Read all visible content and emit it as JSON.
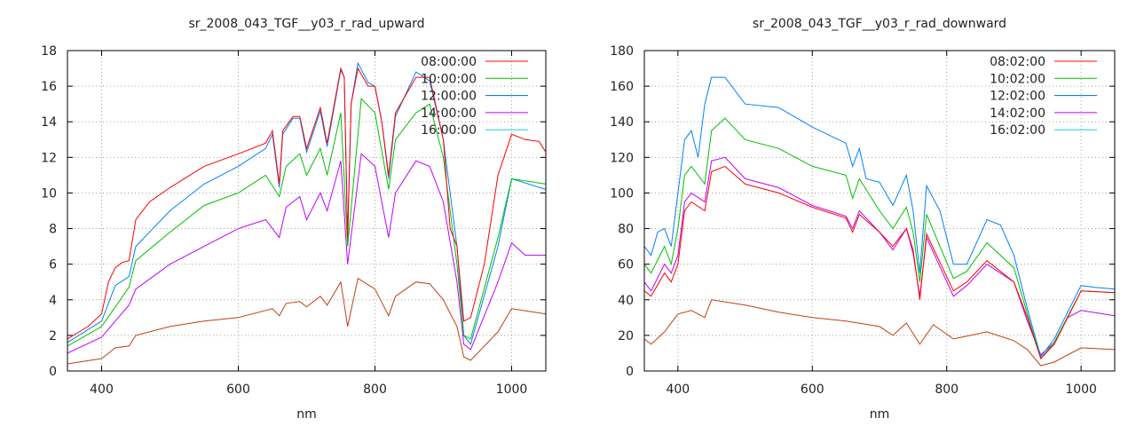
{
  "chart_data": [
    {
      "type": "line",
      "title": "sr_2008_043_TGF__y03_r_rad_upward",
      "xlabel": "nm",
      "ylabel": "",
      "xlim": [
        350,
        1050
      ],
      "ylim": [
        0,
        18
      ],
      "xticks": [
        400,
        600,
        800,
        1000
      ],
      "yticks": [
        0,
        2,
        4,
        6,
        8,
        10,
        12,
        14,
        16,
        18
      ],
      "grid": true,
      "legend_position": "top-right",
      "series": [
        {
          "name": "08:00:00",
          "color": "#ff0000",
          "legend_color": "#ff0000",
          "x": [
            350,
            380,
            400,
            410,
            420,
            430,
            440,
            450,
            470,
            500,
            550,
            600,
            640,
            650,
            660,
            665,
            680,
            690,
            700,
            720,
            730,
            750,
            755,
            760,
            765,
            775,
            790,
            800,
            810,
            820,
            830,
            860,
            880,
            900,
            910,
            920,
            930,
            940,
            960,
            980,
            1000,
            1020,
            1040,
            1050
          ],
          "y": [
            1.8,
            2.5,
            3.2,
            5,
            5.8,
            6.1,
            6.2,
            8.5,
            9.5,
            10.3,
            11.5,
            12.2,
            12.8,
            13.5,
            10.5,
            13.5,
            14.3,
            14.3,
            12.5,
            14.8,
            12.8,
            17,
            16.5,
            7.5,
            15,
            17,
            16,
            16,
            14,
            11,
            14.5,
            16.5,
            16.5,
            13,
            8,
            7,
            2.8,
            3,
            6,
            11,
            13.3,
            13,
            12.9,
            12.3
          ]
        },
        {
          "name": "10:00:00",
          "color": "#00c000",
          "legend_color": "#00c000",
          "x": [
            350,
            400,
            440,
            450,
            500,
            550,
            600,
            640,
            660,
            670,
            690,
            700,
            720,
            730,
            750,
            760,
            780,
            800,
            820,
            830,
            860,
            880,
            900,
            920,
            930,
            940,
            980,
            1000,
            1050
          ],
          "y": [
            1.4,
            2.5,
            4.7,
            6.2,
            7.8,
            9.3,
            10,
            11,
            9.8,
            11.5,
            12.2,
            11,
            12.5,
            11,
            14.5,
            7,
            15.3,
            14.5,
            10.2,
            13,
            14.5,
            15,
            12,
            6,
            2,
            1.8,
            7.5,
            10.8,
            10.5
          ]
        },
        {
          "name": "12:00:00",
          "color": "#0080ff",
          "legend_color": "#0066dd",
          "x": [
            350,
            400,
            420,
            440,
            450,
            500,
            550,
            600,
            640,
            650,
            660,
            665,
            680,
            690,
            700,
            720,
            730,
            750,
            755,
            760,
            765,
            775,
            790,
            800,
            810,
            820,
            830,
            860,
            880,
            900,
            920,
            930,
            940,
            980,
            1000,
            1050
          ],
          "y": [
            1.6,
            2.8,
            4.8,
            5.3,
            7,
            9,
            10.5,
            11.5,
            12.5,
            13.3,
            10.3,
            13.3,
            14.2,
            14.2,
            12.3,
            14.6,
            12.6,
            16.9,
            16.5,
            7.3,
            15,
            17.3,
            16.2,
            16,
            14,
            10.8,
            14.3,
            16.8,
            16.3,
            13,
            7,
            2,
            1.5,
            7,
            10.8,
            10.2
          ]
        },
        {
          "name": "14:00:00",
          "color": "#c000ff",
          "legend_color": "#c000ff",
          "x": [
            350,
            400,
            440,
            450,
            500,
            550,
            600,
            640,
            660,
            670,
            690,
            700,
            720,
            730,
            750,
            760,
            780,
            800,
            820,
            830,
            860,
            880,
            900,
            920,
            930,
            940,
            980,
            1000,
            1020,
            1050
          ],
          "y": [
            1,
            1.9,
            3.7,
            4.6,
            6,
            7,
            8,
            8.5,
            7.5,
            9.2,
            9.8,
            8.5,
            10,
            9,
            11.8,
            6,
            12.2,
            11.5,
            7.5,
            10,
            11.8,
            11.5,
            9.5,
            5,
            1.5,
            1.2,
            5,
            7.2,
            6.5,
            6.5
          ]
        },
        {
          "name": "16:00:00",
          "color": "#c04010",
          "legend_color": "#20d0d0",
          "x": [
            350,
            400,
            420,
            440,
            450,
            500,
            550,
            600,
            650,
            660,
            670,
            690,
            700,
            720,
            730,
            750,
            760,
            775,
            800,
            820,
            830,
            860,
            880,
            900,
            920,
            930,
            940,
            980,
            1000,
            1050
          ],
          "y": [
            0.4,
            0.7,
            1.3,
            1.4,
            2,
            2.5,
            2.8,
            3,
            3.5,
            3.1,
            3.8,
            3.9,
            3.6,
            4.2,
            3.7,
            5,
            2.5,
            5.2,
            4.6,
            3.1,
            4.2,
            5,
            4.9,
            4,
            2.5,
            0.8,
            0.6,
            2.2,
            3.5,
            3.2
          ]
        }
      ]
    },
    {
      "type": "line",
      "title": "sr_2008_043_TGF__y03_r_rad_downward",
      "xlabel": "nm",
      "ylabel": "",
      "xlim": [
        350,
        1050
      ],
      "ylim": [
        0,
        180
      ],
      "xticks": [
        400,
        600,
        800,
        1000
      ],
      "yticks": [
        0,
        20,
        40,
        60,
        80,
        100,
        120,
        140,
        160,
        180
      ],
      "grid": true,
      "legend_position": "top-right",
      "series": [
        {
          "name": "08:02:00",
          "color": "#ff0000",
          "legend_color": "#ff0000",
          "x": [
            350,
            360,
            380,
            390,
            400,
            410,
            420,
            440,
            450,
            470,
            500,
            550,
            600,
            650,
            660,
            670,
            700,
            720,
            740,
            750,
            760,
            770,
            810,
            830,
            860,
            900,
            920,
            940,
            960,
            1000,
            1050
          ],
          "y": [
            45,
            42,
            55,
            50,
            60,
            90,
            95,
            90,
            112,
            115,
            105,
            100,
            92,
            86,
            78,
            88,
            78,
            70,
            80,
            68,
            40,
            77,
            45,
            50,
            62,
            50,
            30,
            7,
            15,
            45,
            44
          ]
        },
        {
          "name": "10:02:00",
          "color": "#00c000",
          "legend_color": "#00c000",
          "x": [
            350,
            360,
            380,
            390,
            400,
            410,
            420,
            440,
            450,
            470,
            500,
            550,
            600,
            650,
            660,
            670,
            700,
            720,
            740,
            750,
            760,
            770,
            810,
            830,
            860,
            900,
            920,
            940,
            960,
            1000,
            1050
          ],
          "y": [
            60,
            55,
            70,
            60,
            80,
            110,
            115,
            105,
            135,
            142,
            130,
            125,
            115,
            110,
            97,
            108,
            90,
            80,
            92,
            78,
            50,
            88,
            52,
            56,
            72,
            58,
            32,
            7,
            16,
            45,
            44
          ]
        },
        {
          "name": "12:02:00",
          "color": "#0080ff",
          "legend_color": "#0066dd",
          "x": [
            350,
            360,
            370,
            380,
            390,
            400,
            410,
            420,
            430,
            440,
            450,
            470,
            500,
            550,
            600,
            650,
            660,
            670,
            680,
            700,
            720,
            740,
            750,
            760,
            770,
            790,
            810,
            830,
            860,
            880,
            900,
            920,
            940,
            960,
            1000,
            1020,
            1050
          ],
          "y": [
            70,
            65,
            78,
            80,
            70,
            100,
            130,
            135,
            120,
            150,
            165,
            165,
            150,
            148,
            137,
            128,
            115,
            125,
            108,
            106,
            93,
            110,
            90,
            55,
            104,
            90,
            60,
            60,
            85,
            82,
            65,
            35,
            8,
            18,
            48,
            47,
            46
          ]
        },
        {
          "name": "14:02:00",
          "color": "#c000ff",
          "legend_color": "#c000ff",
          "x": [
            350,
            360,
            380,
            390,
            400,
            410,
            420,
            440,
            450,
            470,
            500,
            550,
            600,
            650,
            660,
            670,
            700,
            720,
            740,
            750,
            760,
            770,
            810,
            830,
            860,
            900,
            920,
            940,
            960,
            980,
            1000,
            1050
          ],
          "y": [
            50,
            45,
            60,
            55,
            65,
            95,
            100,
            95,
            118,
            120,
            108,
            103,
            93,
            87,
            80,
            90,
            78,
            68,
            80,
            66,
            42,
            75,
            42,
            48,
            60,
            50,
            28,
            9,
            16,
            30,
            34,
            31
          ]
        },
        {
          "name": "16:02:00",
          "color": "#c04010",
          "legend_color": "#20d0d0",
          "x": [
            350,
            360,
            380,
            400,
            420,
            440,
            450,
            500,
            550,
            600,
            650,
            700,
            720,
            740,
            760,
            780,
            810,
            860,
            900,
            920,
            940,
            960,
            1000,
            1050
          ],
          "y": [
            18,
            15,
            22,
            32,
            34,
            30,
            40,
            37,
            33,
            30,
            28,
            25,
            20,
            27,
            15,
            26,
            18,
            22,
            17,
            12,
            3,
            5,
            13,
            12
          ]
        }
      ]
    }
  ]
}
